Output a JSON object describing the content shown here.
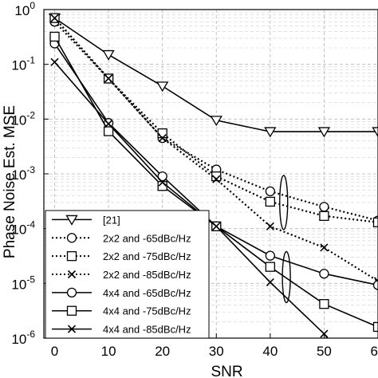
{
  "chart_data": {
    "type": "line",
    "title": "",
    "xlabel": "SNR",
    "ylabel": "Phase Noise Est. MSE",
    "xlim": [
      -2,
      60
    ],
    "ylim": [
      1e-06,
      1
    ],
    "yscale": "log",
    "grid": true,
    "legend_position": "bottom-left",
    "x_ticks": [
      0,
      10,
      20,
      30,
      40,
      50,
      60
    ],
    "x_tick_labels": [
      "0",
      "10",
      "20",
      "30",
      "40",
      "50",
      "60"
    ],
    "y_ticks": [
      1,
      0.1,
      0.01,
      0.001,
      0.0001,
      1e-05,
      1e-06
    ],
    "y_tick_bases": [
      "10",
      "10",
      "10",
      "10",
      "10",
      "10",
      "10"
    ],
    "y_tick_exponents": [
      "0",
      "-1",
      "-2",
      "-3",
      "-4",
      "-5",
      "-6"
    ],
    "series": [
      {
        "name": "[21]",
        "marker": "triangle-down",
        "line": "solid",
        "x": [
          0,
          10,
          20,
          30,
          40,
          50,
          60
        ],
        "y": [
          0.7,
          0.15,
          0.04,
          0.0095,
          0.0059,
          0.0059,
          0.0059
        ]
      },
      {
        "name": "2x2 and -65dBc/Hz",
        "marker": "circle",
        "line": "dotted",
        "x": [
          0,
          10,
          20,
          30,
          40,
          50,
          60
        ],
        "y": [
          0.6,
          0.055,
          0.0045,
          0.0012,
          0.00048,
          0.00025,
          0.00014
        ]
      },
      {
        "name": "2x2 and -75dBc/Hz",
        "marker": "square",
        "line": "dotted",
        "x": [
          0,
          10,
          20,
          30,
          40,
          50,
          60
        ],
        "y": [
          0.7,
          0.055,
          0.0055,
          0.0009,
          0.00031,
          0.00017,
          0.00013
        ]
      },
      {
        "name": "2x2 and -85dBc/Hz",
        "marker": "x",
        "line": "dotted",
        "x": [
          0,
          10,
          20,
          30,
          40,
          50,
          60
        ],
        "y": [
          0.7,
          0.055,
          0.0045,
          0.0008,
          0.00011,
          4.5e-05,
          1.1e-05
        ]
      },
      {
        "name": "4x4 and -65dBc/Hz",
        "marker": "circle",
        "line": "solid",
        "x": [
          0,
          10,
          20,
          30,
          40,
          50,
          60
        ],
        "y": [
          0.24,
          0.0085,
          0.0009,
          0.00011,
          3.2e-05,
          1.5e-05,
          9.3e-06
        ]
      },
      {
        "name": "4x4 and -75dBc/Hz",
        "marker": "square",
        "line": "solid",
        "x": [
          0,
          10,
          20,
          30,
          40,
          50,
          60
        ],
        "y": [
          0.32,
          0.006,
          0.0006,
          0.00011,
          2e-05,
          4.2e-06,
          1.6e-06
        ]
      },
      {
        "name": "4x4 and -85dBc/Hz",
        "marker": "x",
        "line": "solid",
        "x": [
          0,
          10,
          20,
          30,
          40,
          50,
          53
        ],
        "y": [
          0.11,
          0.0082,
          0.0007,
          0.00011,
          1.05e-05,
          1.2e-06,
          5e-07
        ]
      }
    ]
  }
}
